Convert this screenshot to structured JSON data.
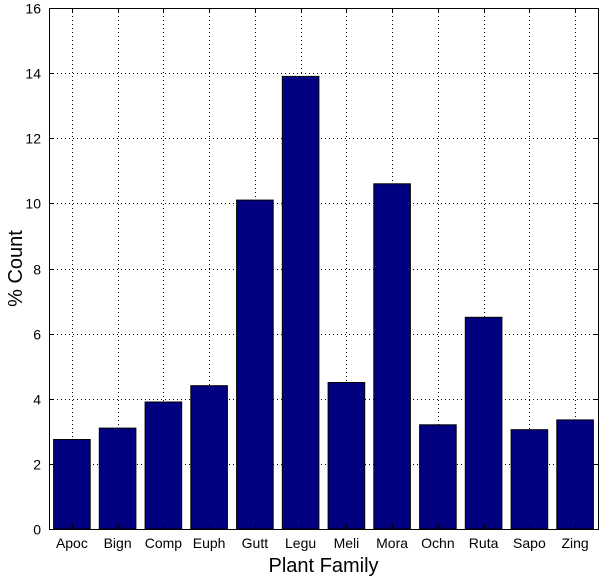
{
  "chart_data": {
    "type": "bar",
    "categories": [
      "Apoc",
      "Bign",
      "Comp",
      "Euph",
      "Gutt",
      "Legu",
      "Meli",
      "Mora",
      "Ochn",
      "Ruta",
      "Sapo",
      "Zing"
    ],
    "values": [
      2.75,
      3.1,
      3.9,
      4.4,
      10.1,
      13.9,
      4.5,
      10.6,
      3.2,
      6.5,
      3.05,
      3.35
    ],
    "title": "",
    "xlabel": "Plant Family",
    "ylabel": "% Count",
    "ylim": [
      0,
      16
    ],
    "yticks": [
      "0",
      "2",
      "4",
      "6",
      "8",
      "10",
      "12",
      "14",
      "16"
    ],
    "grid": true,
    "colors": {
      "bar_fill": "#000080",
      "bar_edge": "#000000"
    }
  }
}
